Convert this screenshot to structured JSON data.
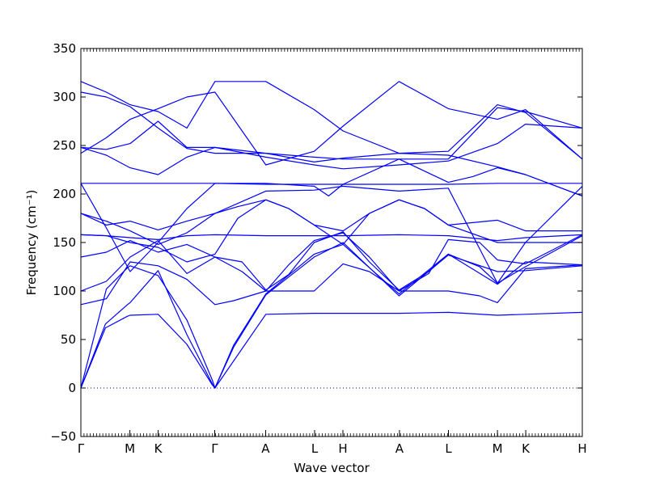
{
  "chart_data": {
    "type": "line",
    "xlabel": "Wave vector",
    "ylabel": "Frequency (cm⁻¹)",
    "ylim": [
      -50,
      350
    ],
    "yticks": [
      "350",
      "300",
      "250",
      "200",
      "150",
      "100",
      "50",
      "0",
      "−50"
    ],
    "xticks": [
      "Γ",
      "M",
      "K",
      "Γ",
      "A",
      "L",
      "H",
      "A",
      "L",
      "M",
      "K",
      "H"
    ],
    "xtick_positions": [
      0,
      0.5774,
      0.9107,
      1.5774,
      2.1774,
      2.7548,
      3.0881,
      3.7548,
      4.3322,
      4.9096,
      5.2429,
      5.9096
    ],
    "line_color": "#0000ff",
    "zero_line": {
      "y": 0,
      "style": "dotted",
      "color": "#0000ff"
    },
    "series": [
      {
        "x": [
          0,
          0.29,
          0.55,
          0.58,
          0.91,
          1.25,
          1.55,
          1.58,
          2.18,
          2.75,
          3.09,
          3.75,
          4.33,
          4.91,
          5.24,
          5.91
        ],
        "y": [
          0,
          62,
          74,
          75,
          76,
          45,
          3,
          0,
          76,
          77,
          77,
          77,
          78,
          75,
          76,
          78
        ]
      },
      {
        "x": [
          0,
          0.29,
          0.55,
          0.58,
          0.91,
          1.25,
          1.55,
          1.58,
          1.8,
          2.18,
          2.75,
          3.09,
          3.75,
          4.33,
          4.91,
          5.24,
          5.91
        ],
        "y": [
          0,
          66,
          86,
          88,
          121,
          55,
          4,
          0,
          42,
          96,
          135,
          150,
          95,
          137,
          120,
          121,
          126
        ]
      },
      {
        "x": [
          0,
          0.3,
          0.55,
          0.58,
          0.91,
          1.25,
          1.55,
          1.58,
          1.8,
          2.18,
          2.75,
          3.09,
          3.75,
          4.33,
          4.91,
          5.24,
          5.91
        ],
        "y": [
          0,
          102,
          124,
          126,
          116,
          70,
          8,
          0,
          44,
          97,
          138,
          148,
          97,
          138,
          107,
          130,
          127
        ]
      },
      {
        "x": [
          0,
          0.3,
          0.58,
          0.91,
          1.25,
          1.58,
          1.8,
          2.18,
          2.5,
          2.75,
          3.09,
          3.4,
          3.75,
          4.1,
          4.33,
          4.7,
          4.91,
          5.24,
          5.91
        ],
        "y": [
          86,
          92,
          130,
          126,
          112,
          86,
          90,
          100,
          100,
          100,
          128,
          120,
          100,
          100,
          100,
          95,
          88,
          123,
          127
        ]
      },
      {
        "x": [
          0,
          0.3,
          0.58,
          0.91,
          1.25,
          1.58,
          1.9,
          2.18,
          2.45,
          2.75,
          3.09,
          3.4,
          3.75,
          4.1,
          4.33,
          4.7,
          4.91,
          5.24,
          5.91
        ],
        "y": [
          100,
          110,
          135,
          152,
          118,
          135,
          130,
          101,
          117,
          150,
          161,
          130,
          101,
          120,
          138,
          125,
          108,
          125,
          157
        ]
      },
      {
        "x": [
          0,
          0.3,
          0.58,
          0.91,
          1.25,
          1.58,
          1.9,
          2.18,
          2.45,
          2.75,
          3.09,
          3.4,
          3.75,
          4.1,
          4.33,
          4.7,
          4.91,
          5.24,
          5.91
        ],
        "y": [
          135,
          140,
          152,
          140,
          148,
          135,
          120,
          100,
          127,
          152,
          160,
          135,
          100,
          118,
          153,
          150,
          132,
          128,
          158
        ]
      },
      {
        "x": [
          0,
          0.3,
          0.58,
          0.91,
          1.25,
          1.58,
          2.18,
          2.75,
          3.09,
          3.75,
          4.33,
          4.91,
          5.24,
          5.91
        ],
        "y": [
          158,
          157,
          155,
          153,
          157,
          158,
          157,
          157,
          157,
          158,
          157,
          152,
          155,
          158
        ]
      },
      {
        "x": [
          0,
          0.3,
          0.58,
          0.91,
          1.25,
          1.58,
          1.85,
          2.18,
          2.45,
          2.75,
          3.09,
          3.4,
          3.75,
          4.05,
          4.33,
          4.91,
          5.24,
          5.91
        ],
        "y": [
          158,
          157,
          150,
          145,
          130,
          138,
          175,
          194,
          185,
          168,
          162,
          180,
          194,
          185,
          168,
          173,
          162,
          162
        ]
      },
      {
        "x": [
          0,
          0.3,
          0.58,
          0.91,
          1.25,
          1.58,
          1.85,
          2.18,
          2.45,
          2.75,
          3.09,
          3.4,
          3.75,
          4.05,
          4.33,
          4.91,
          5.24,
          5.91
        ],
        "y": [
          180,
          172,
          162,
          148,
          160,
          180,
          187,
          194,
          185,
          168,
          148,
          180,
          194,
          185,
          168,
          150,
          150,
          150
        ]
      },
      {
        "x": [
          0,
          0.3,
          0.58,
          0.91,
          1.25,
          1.58,
          2.18,
          2.75,
          3.09,
          3.75,
          4.33,
          4.91,
          5.24,
          5.91
        ],
        "y": [
          180,
          168,
          172,
          163,
          172,
          180,
          203,
          204,
          208,
          203,
          206,
          108,
          150,
          208
        ]
      },
      {
        "x": [
          0,
          0.3,
          0.58,
          0.91,
          1.25,
          1.58,
          2.18,
          2.75,
          3.09,
          3.75,
          4.33,
          4.91,
          5.24,
          5.91
        ],
        "y": [
          211,
          211,
          211,
          211,
          211,
          211,
          210,
          210,
          210,
          210,
          210,
          211,
          211,
          211
        ]
      },
      {
        "x": [
          0,
          0.3,
          0.58,
          0.91,
          1.25,
          1.58,
          2.18,
          2.75,
          2.92,
          3.09,
          3.75,
          4.33,
          4.62,
          4.91,
          5.24,
          5.91
        ],
        "y": [
          211,
          165,
          120,
          150,
          185,
          211,
          211,
          208,
          198,
          210,
          236,
          212,
          218,
          227,
          220,
          198
        ]
      },
      {
        "x": [
          0,
          0.3,
          0.58,
          0.91,
          1.25,
          1.58,
          2.18,
          2.75,
          3.09,
          3.75,
          4.33,
          4.91,
          5.24,
          5.91
        ],
        "y": [
          248,
          240,
          227,
          220,
          238,
          248,
          242,
          233,
          237,
          242,
          240,
          228,
          220,
          198
        ]
      },
      {
        "x": [
          0,
          0.3,
          0.58,
          0.91,
          1.25,
          1.58,
          2.18,
          2.75,
          3.09,
          3.75,
          4.33,
          4.91,
          5.24,
          5.91
        ],
        "y": [
          248,
          246,
          252,
          275,
          248,
          248,
          238,
          230,
          226,
          230,
          234,
          252,
          272,
          268
        ]
      },
      {
        "x": [
          0,
          0.3,
          0.58,
          0.91,
          1.25,
          1.58,
          2.18,
          2.75,
          3.09,
          3.75,
          4.33,
          4.91,
          5.24,
          5.91
        ],
        "y": [
          242,
          258,
          277,
          288,
          300,
          305,
          230,
          244,
          270,
          316,
          288,
          277,
          287,
          236
        ]
      },
      {
        "x": [
          0,
          0.3,
          0.58,
          0.91,
          1.25,
          1.58,
          2.18,
          2.75,
          3.09,
          3.75,
          4.33,
          4.91,
          5.24,
          5.91
        ],
        "y": [
          305,
          300,
          290,
          268,
          247,
          242,
          242,
          238,
          236,
          236,
          236,
          289,
          285,
          268
        ]
      },
      {
        "x": [
          0,
          0.3,
          0.58,
          0.91,
          1.25,
          1.58,
          2.18,
          2.75,
          3.09,
          3.75,
          4.33,
          4.91,
          5.24,
          5.91
        ],
        "y": [
          316,
          305,
          292,
          285,
          268,
          316,
          316,
          287,
          265,
          242,
          244,
          292,
          284,
          236
        ]
      }
    ]
  }
}
